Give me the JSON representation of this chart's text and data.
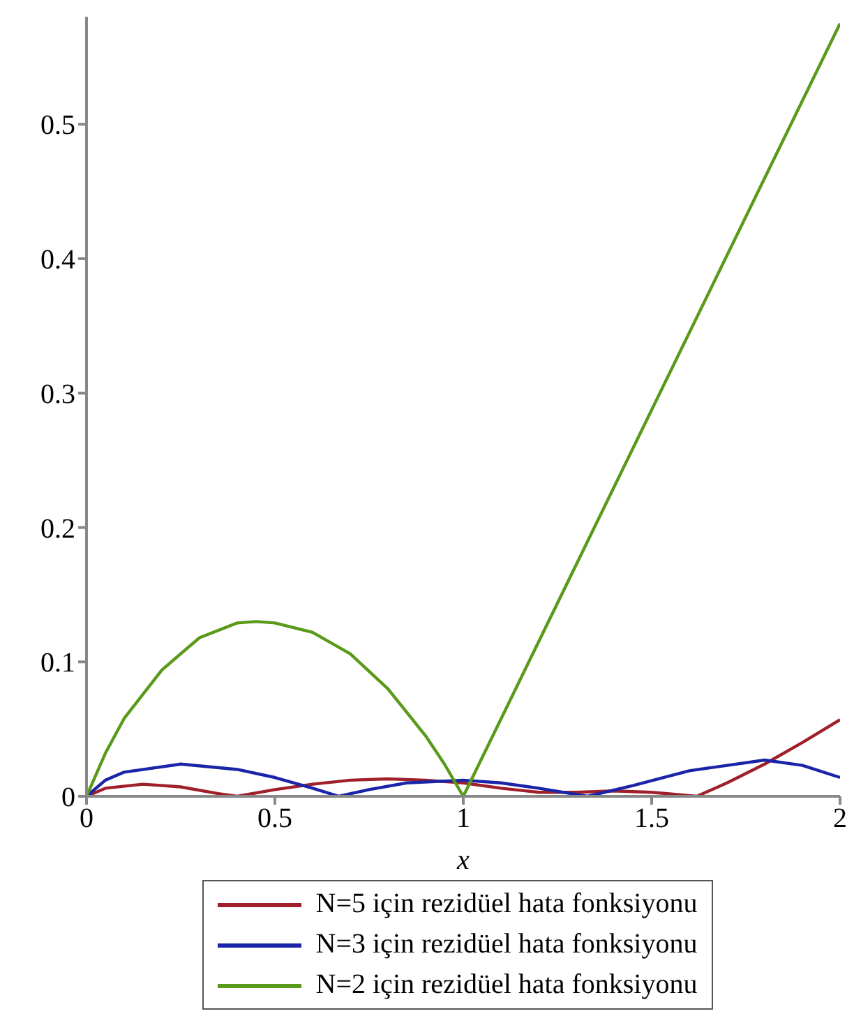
{
  "chart_data": {
    "type": "line",
    "xlabel": "x",
    "xlim": [
      0,
      2
    ],
    "xticks": [
      0,
      0.5,
      1,
      1.5,
      2
    ],
    "ylim": [
      0,
      0.58
    ],
    "yticks": [
      0,
      0.1,
      0.2,
      0.3,
      0.4,
      0.5
    ],
    "grid": false,
    "legend": "bottom",
    "marker": "none",
    "line_style": "solid",
    "series": [
      {
        "name": "N=5 için rezidüel hata fonksiyonu",
        "color": "#a0202a",
        "x": [
          0,
          0.05,
          0.15,
          0.25,
          0.35,
          0.4,
          0.5,
          0.6,
          0.7,
          0.8,
          0.9,
          1.0,
          1.1,
          1.2,
          1.3,
          1.4,
          1.5,
          1.62,
          1.7,
          1.8,
          1.9,
          2
        ],
        "values": [
          0,
          0.006,
          0.009,
          0.007,
          0.002,
          0,
          0.005,
          0.009,
          0.012,
          0.013,
          0.012,
          0.01,
          0.006,
          0.003,
          0.003,
          0.004,
          0.003,
          0,
          0.01,
          0.024,
          0.04,
          0.057
        ]
      },
      {
        "name": "N=3 için rezidüel hata fonksiyonu",
        "color": "#1a24a8",
        "x": [
          0,
          0.05,
          0.1,
          0.25,
          0.4,
          0.5,
          0.6,
          0.67,
          0.75,
          0.85,
          1.0,
          1.1,
          1.2,
          1.33,
          1.45,
          1.6,
          1.8,
          1.9,
          2
        ],
        "values": [
          0,
          0.012,
          0.018,
          0.024,
          0.02,
          0.014,
          0.006,
          0,
          0.005,
          0.01,
          0.012,
          0.01,
          0.006,
          0,
          0.008,
          0.019,
          0.027,
          0.023,
          0.014
        ]
      },
      {
        "name": "N=2 için rezidüel hata fonksiyonu",
        "color": "#5a9a1a",
        "x": [
          0,
          0.05,
          0.1,
          0.2,
          0.3,
          0.4,
          0.45,
          0.5,
          0.6,
          0.7,
          0.8,
          0.9,
          0.95,
          1.0,
          2
        ],
        "values": [
          0,
          0.032,
          0.058,
          0.094,
          0.118,
          0.129,
          0.13,
          0.129,
          0.122,
          0.106,
          0.08,
          0.045,
          0.024,
          0,
          0.575
        ]
      }
    ]
  }
}
